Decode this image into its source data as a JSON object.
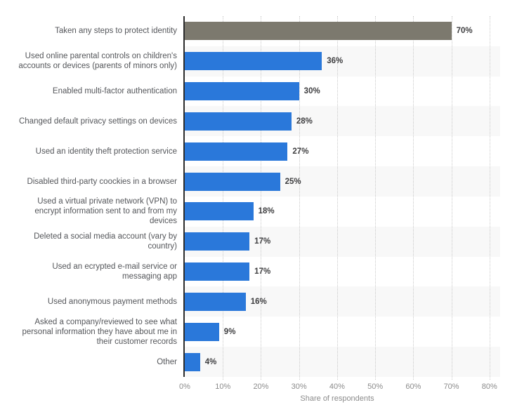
{
  "chart_data": {
    "type": "bar",
    "orientation": "horizontal",
    "title": "",
    "xlabel": "Share of respondents",
    "ylabel": "",
    "xlim": [
      0,
      80
    ],
    "x_ticks": [
      {
        "value": 0,
        "label": "0%"
      },
      {
        "value": 10,
        "label": "10%"
      },
      {
        "value": 20,
        "label": "20%"
      },
      {
        "value": 30,
        "label": "30%"
      },
      {
        "value": 40,
        "label": "40%"
      },
      {
        "value": 50,
        "label": "50%"
      },
      {
        "value": 60,
        "label": "60%"
      },
      {
        "value": 70,
        "label": "70%"
      },
      {
        "value": 80,
        "label": "80%"
      }
    ],
    "grid": "vertical-dotted",
    "legend": "none",
    "categories": [
      "Taken any steps to protect identity",
      "Used online parental controls on children's accounts or devices (parents of minors only)",
      "Enabled multi-factor authentication",
      "Changed default privacy settings on devices",
      "Used an identity theft protection service",
      "Disabled third-party coockies in a browser",
      "Used a virtual private network (VPN) to encrypt information sent to and from my devices",
      "Deleted a social media account (vary by country)",
      "Used an ecrypted e-mail service or messaging app",
      "Used anonymous payment methods",
      "Asked a company/reviewed to see what personal information they have about me in their customer records",
      "Other"
    ],
    "values": [
      70,
      36,
      30,
      28,
      27,
      25,
      18,
      17,
      17,
      16,
      9,
      4
    ],
    "value_labels": [
      "70%",
      "36%",
      "30%",
      "28%",
      "27%",
      "25%",
      "18%",
      "17%",
      "17%",
      "16%",
      "9%",
      "4%"
    ],
    "highlight_index": 0
  },
  "colors": {
    "bar_highlight": "#7c796e",
    "bar_default": "#2a78da",
    "row_stripe": "#f8f8f8",
    "gridline": "#c9c9c9",
    "axis_line": "#2c2c2c",
    "category_label": "#54565a",
    "value_label": "#3e3e40",
    "tick_label": "#8b8b8b"
  }
}
